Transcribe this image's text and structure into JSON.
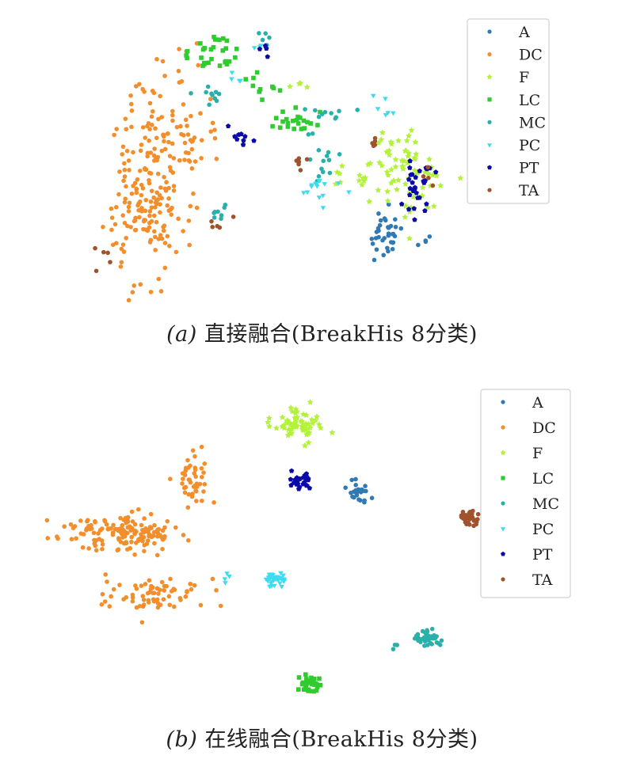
{
  "chart_data": [
    {
      "type": "scatter",
      "panel": "a",
      "caption_label": "(a)",
      "caption_text": "直接融合(BreakHis 8分类)",
      "legend_position": "top-right",
      "axes_visible": false,
      "xlim": [
        0,
        100
      ],
      "ylim": [
        0,
        100
      ],
      "series": [
        {
          "name": "A",
          "color": "#2f79b5",
          "marker": "circle",
          "clusters": [
            {
              "cx": 82,
              "cy": 22,
              "sx": 2.5,
              "sy": 5,
              "n": 35
            },
            {
              "cx": 93,
              "cy": 20,
              "sx": 1.5,
              "sy": 2,
              "n": 4
            }
          ]
        },
        {
          "name": "DC",
          "color": "#f28e2b",
          "marker": "circle",
          "clusters": [
            {
              "cx": 15,
              "cy": 34,
              "sx": 5.5,
              "sy": 15,
              "n": 170
            },
            {
              "cx": 26,
              "cy": 60,
              "sx": 4.5,
              "sy": 6,
              "n": 45
            },
            {
              "cx": 15,
              "cy": 72,
              "sx": 3,
              "sy": 6,
              "n": 18
            },
            {
              "cx": 26,
              "cy": 90,
              "sx": 3,
              "sy": 4,
              "n": 8
            }
          ]
        },
        {
          "name": "F",
          "color": "#b3f23a",
          "marker": "star",
          "clusters": [
            {
              "cx": 86,
              "cy": 48,
              "sx": 5,
              "sy": 10,
              "n": 70
            },
            {
              "cx": 72,
              "cy": 46,
              "sx": 3,
              "sy": 3,
              "n": 10
            },
            {
              "cx": 56,
              "cy": 81,
              "sx": 3,
              "sy": 2,
              "n": 4
            }
          ]
        },
        {
          "name": "LC",
          "color": "#2fcc2f",
          "marker": "square",
          "clusters": [
            {
              "cx": 33,
              "cy": 92,
              "sx": 4,
              "sy": 4,
              "n": 28
            },
            {
              "cx": 48,
              "cy": 80,
              "sx": 3,
              "sy": 4,
              "n": 10
            },
            {
              "cx": 55,
              "cy": 66,
              "sx": 5,
              "sy": 2,
              "n": 22
            }
          ]
        },
        {
          "name": "MC",
          "color": "#2ab0aa",
          "marker": "circle",
          "clusters": [
            {
              "cx": 33,
              "cy": 77,
              "sx": 2,
              "sy": 2,
              "n": 10
            },
            {
              "cx": 64,
              "cy": 50,
              "sx": 2,
              "sy": 5,
              "n": 14
            },
            {
              "cx": 69,
              "cy": 69,
              "sx": 4,
              "sy": 1.5,
              "n": 10
            },
            {
              "cx": 35,
              "cy": 32,
              "sx": 1.5,
              "sy": 3,
              "n": 8
            },
            {
              "cx": 47,
              "cy": 97,
              "sx": 2,
              "sy": 1.5,
              "n": 5
            }
          ]
        },
        {
          "name": "PC",
          "color": "#3bdcf0",
          "marker": "triangle",
          "clusters": [
            {
              "cx": 64,
              "cy": 41,
              "sx": 4,
              "sy": 2,
              "n": 15
            },
            {
              "cx": 83,
              "cy": 72,
              "sx": 2,
              "sy": 3,
              "n": 6
            },
            {
              "cx": 40,
              "cy": 83,
              "sx": 1.5,
              "sy": 2,
              "n": 4
            },
            {
              "cx": 47,
              "cy": 95,
              "sx": 1,
              "sy": 1.5,
              "n": 3
            }
          ]
        },
        {
          "name": "PT",
          "color": "#0a0aa8",
          "marker": "pentagon",
          "clusters": [
            {
              "cx": 91,
              "cy": 41,
              "sx": 2,
              "sy": 6,
              "n": 30
            },
            {
              "cx": 42,
              "cy": 60,
              "sx": 3,
              "sy": 2,
              "n": 9
            },
            {
              "cx": 48,
              "cy": 94,
              "sx": 1,
              "sy": 1.5,
              "n": 4
            }
          ]
        },
        {
          "name": "TA",
          "color": "#a0522d",
          "marker": "circle",
          "clusters": [
            {
              "cx": 3,
              "cy": 14,
              "sx": 1.5,
              "sy": 3,
              "n": 5
            },
            {
              "cx": 35,
              "cy": 28,
              "sx": 2,
              "sy": 1.5,
              "n": 5
            },
            {
              "cx": 57,
              "cy": 50,
              "sx": 2,
              "sy": 1.5,
              "n": 6
            },
            {
              "cx": 79,
              "cy": 58,
              "sx": 1.5,
              "sy": 2,
              "n": 5
            },
            {
              "cx": 94,
              "cy": 44,
              "sx": 1,
              "sy": 2,
              "n": 4
            }
          ]
        }
      ]
    },
    {
      "type": "scatter",
      "panel": "b",
      "caption_label": "(b)",
      "caption_text": "在线融合(BreakHis 8分类)",
      "legend_position": "top-right",
      "axes_visible": false,
      "xlim": [
        0,
        100
      ],
      "ylim": [
        0,
        100
      ],
      "series": [
        {
          "name": "A",
          "color": "#2f79b5",
          "marker": "circle",
          "clusters": [
            {
              "cx": 74,
              "cy": 70,
              "sx": 1.3,
              "sy": 1.8,
              "n": 26
            }
          ]
        },
        {
          "name": "DC",
          "color": "#f28e2b",
          "marker": "circle",
          "clusters": [
            {
              "cx": 12,
              "cy": 56,
              "sx": 7,
              "sy": 3.2,
              "n": 150
            },
            {
              "cx": 21,
              "cy": 35,
              "sx": 6.5,
              "sy": 3,
              "n": 70
            },
            {
              "cx": 31,
              "cy": 75,
              "sx": 1.8,
              "sy": 4,
              "n": 45
            }
          ]
        },
        {
          "name": "F",
          "color": "#b3f23a",
          "marker": "star",
          "clusters": [
            {
              "cx": 58,
              "cy": 93,
              "sx": 3.5,
              "sy": 2.5,
              "n": 65
            }
          ]
        },
        {
          "name": "LC",
          "color": "#2fcc2f",
          "marker": "square",
          "clusters": [
            {
              "cx": 61,
              "cy": 4,
              "sx": 1.4,
              "sy": 2,
              "n": 35
            }
          ]
        },
        {
          "name": "MC",
          "color": "#2ab0aa",
          "marker": "circle",
          "clusters": [
            {
              "cx": 91,
              "cy": 20,
              "sx": 2,
              "sy": 1.5,
              "n": 40
            },
            {
              "cx": 82,
              "cy": 17,
              "sx": 0.8,
              "sy": 0.8,
              "n": 3
            }
          ]
        },
        {
          "name": "PC",
          "color": "#3bdcf0",
          "marker": "triangle",
          "clusters": [
            {
              "cx": 52,
              "cy": 40,
              "sx": 1.4,
              "sy": 1.2,
              "n": 30
            },
            {
              "cx": 40,
              "cy": 40,
              "sx": 0.6,
              "sy": 1.5,
              "n": 4
            }
          ]
        },
        {
          "name": "PT",
          "color": "#0a0aa8",
          "marker": "pentagon",
          "clusters": [
            {
              "cx": 59,
              "cy": 74,
              "sx": 1.3,
              "sy": 1.6,
              "n": 30
            }
          ]
        },
        {
          "name": "TA",
          "color": "#a0522d",
          "marker": "circle",
          "clusters": [
            {
              "cx": 102,
              "cy": 61,
              "sx": 1.3,
              "sy": 1.6,
              "n": 35
            }
          ]
        }
      ]
    }
  ]
}
